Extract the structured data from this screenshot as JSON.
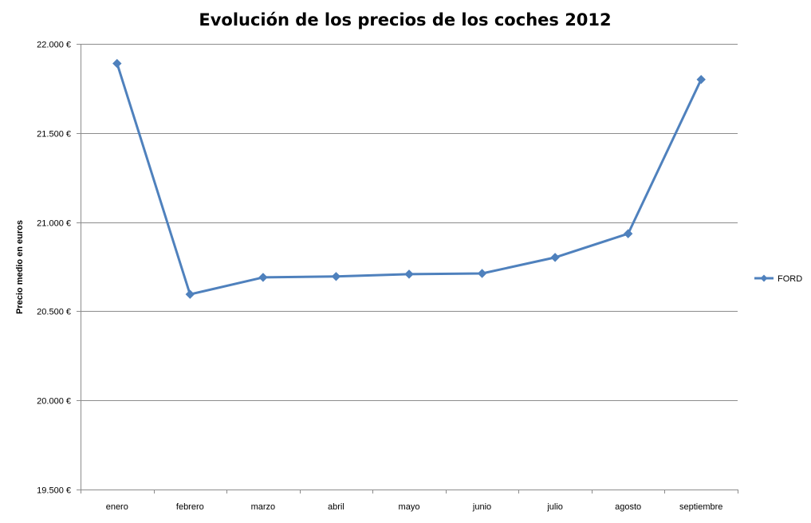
{
  "chart_data": {
    "type": "line",
    "title": "Evolución de los precios de los coches 2012",
    "xlabel": "",
    "ylabel": "Precio medio en euros",
    "categories": [
      "enero",
      "febrero",
      "marzo",
      "abril",
      "mayo",
      "junio",
      "julio",
      "agosto",
      "septiembre"
    ],
    "series": [
      {
        "name": "FORD",
        "color": "#4F81BD",
        "marker": "diamond",
        "values": [
          21890,
          20595,
          20690,
          20695,
          20708,
          20712,
          20802,
          20935,
          21800
        ]
      }
    ],
    "ylim": [
      19500,
      22000
    ],
    "yticks": [
      19500,
      20000,
      20500,
      21000,
      21500,
      22000
    ],
    "ytick_labels": [
      "19.500 €",
      "20.000 €",
      "20.500 €",
      "21.000 €",
      "21.500 €",
      "22.000 €"
    ],
    "grid": true,
    "legend": "right"
  }
}
